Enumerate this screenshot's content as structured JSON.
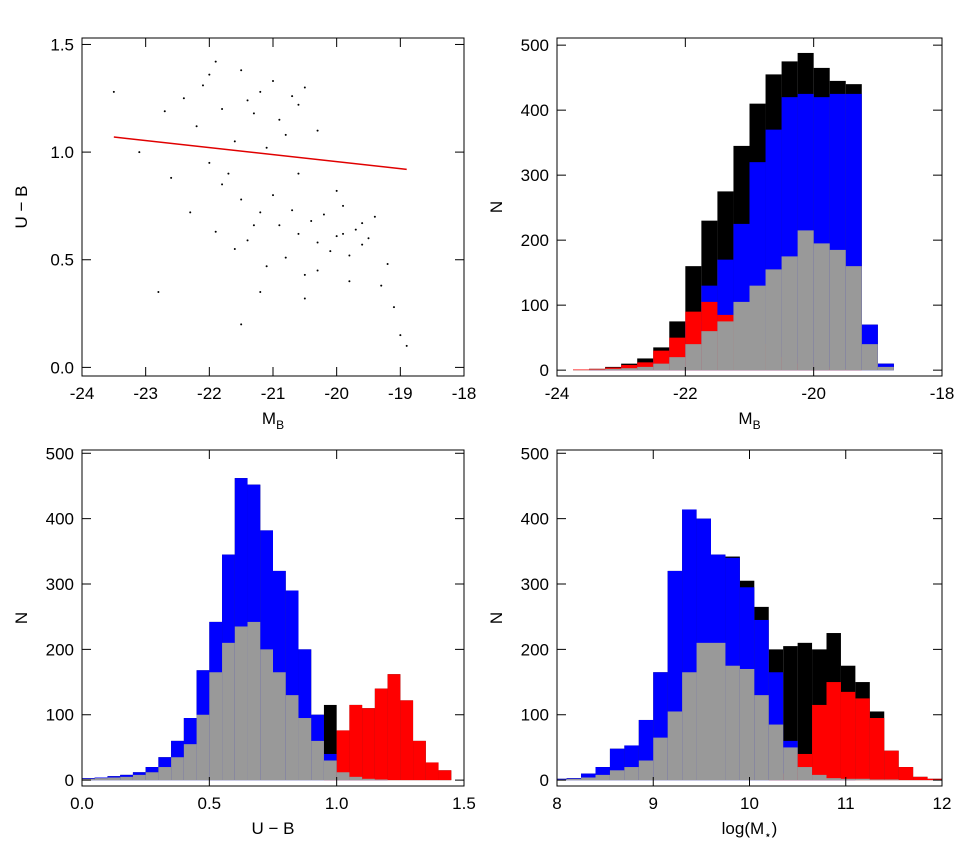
{
  "chart_data": [
    {
      "type": "scatter",
      "xlabel": [
        "M",
        "B"
      ],
      "ylabel": [
        "U − B"
      ],
      "xlim": [
        -24,
        -18
      ],
      "ylim": [
        -0.04,
        1.53
      ],
      "xticks": [
        -24,
        -23,
        -22,
        -21,
        -20,
        -19,
        -18
      ],
      "yticks": [
        {
          "value": 0,
          "label": "0.0"
        },
        0.5,
        {
          "value": 1,
          "label": "1.0"
        },
        1.5
      ],
      "series": [
        {
          "color": "#000000",
          "x": [
            -21.8,
            -21.5,
            -21.2,
            -20.9,
            -20.6,
            -20.3,
            -20.0,
            -19.7,
            -19.4,
            -21.6,
            -21.3,
            -21.0,
            -20.7,
            -20.4,
            -20.1,
            -19.8,
            -19.5,
            -19.2,
            -22.0,
            -21.7,
            -21.4,
            -21.1,
            -20.8,
            -20.5,
            -20.2,
            -19.9,
            -19.6,
            -19.3,
            -22.3,
            -22.6,
            -21.9,
            -21.2,
            -20.5,
            -19.8,
            -19.1,
            -20.0,
            -20.3,
            -19.6,
            -19.9,
            -20.6,
            -22.4,
            -22.1,
            -21.8,
            -21.5,
            -21.2,
            -20.9,
            -20.6,
            -20.3,
            -21.9,
            -21.6,
            -21.3,
            -21.0,
            -20.7,
            -22.2,
            -21.4,
            -20.8,
            -22.7,
            -22.0,
            -21.1,
            -20.5,
            -23.5,
            -23.1,
            -19.0,
            -18.9,
            -22.8,
            -21.5
          ],
          "values": [
            0.85,
            0.78,
            0.72,
            0.66,
            0.62,
            0.58,
            0.61,
            0.64,
            0.7,
            0.55,
            0.66,
            0.8,
            0.73,
            0.68,
            0.54,
            0.52,
            0.6,
            0.48,
            0.95,
            0.9,
            0.59,
            0.47,
            0.51,
            0.43,
            0.71,
            0.75,
            0.57,
            0.38,
            0.72,
            0.88,
            0.63,
            0.35,
            0.32,
            0.4,
            0.28,
            0.82,
            0.45,
            0.67,
            0.62,
            0.9,
            1.25,
            1.31,
            1.2,
            1.38,
            1.28,
            1.15,
            1.22,
            1.1,
            1.42,
            1.05,
            1.18,
            1.33,
            1.26,
            1.12,
            1.24,
            1.08,
            1.19,
            1.36,
            1.02,
            1.3,
            1.28,
            1.0,
            0.15,
            0.1,
            0.35,
            0.2
          ]
        }
      ],
      "fit_line": {
        "color": "#e00000",
        "x": [
          -23.5,
          -18.9
        ],
        "y": [
          1.07,
          0.92
        ]
      }
    },
    {
      "type": "histogram",
      "xlabel": [
        "M",
        "B"
      ],
      "ylabel": [
        "N"
      ],
      "xlim": [
        -24,
        -18
      ],
      "ylim": [
        -9,
        511
      ],
      "xticks": [
        -24,
        -22,
        -20,
        -18
      ],
      "yticks": [
        0,
        100,
        200,
        300,
        400,
        500
      ],
      "bins": [
        -23.75,
        -23.5,
        -23.25,
        -23,
        -22.75,
        -22.5,
        -22.25,
        -22,
        -21.75,
        -21.5,
        -21.25,
        -21,
        -20.75,
        -20.5,
        -20.25,
        -20,
        -19.75,
        -19.5,
        -19.25,
        -19,
        -18.75
      ],
      "series": [
        {
          "color": "#000000",
          "values": [
            1,
            2,
            5,
            10,
            18,
            35,
            75,
            160,
            230,
            275,
            345,
            410,
            455,
            475,
            488,
            465,
            445,
            440,
            70,
            10
          ]
        },
        {
          "color": "#0000ff",
          "values": [
            0,
            1,
            2,
            5,
            8,
            15,
            35,
            75,
            130,
            170,
            225,
            320,
            370,
            420,
            425,
            420,
            425,
            425,
            70,
            10
          ]
        },
        {
          "color": "#ff0000",
          "values": [
            1,
            2,
            4,
            8,
            12,
            30,
            50,
            90,
            105,
            85,
            70,
            50,
            40,
            20,
            10,
            5,
            2,
            1,
            0,
            0
          ]
        },
        {
          "color": "#999999",
          "values": [
            0,
            1,
            2,
            3,
            5,
            10,
            20,
            40,
            60,
            75,
            105,
            130,
            155,
            175,
            215,
            195,
            185,
            160,
            40,
            5
          ]
        }
      ]
    },
    {
      "type": "histogram",
      "xlabel": [
        "U − B"
      ],
      "ylabel": [
        "N"
      ],
      "xlim": [
        0,
        1.5
      ],
      "ylim": [
        -9,
        505
      ],
      "xticks": [
        {
          "value": 0,
          "label": "0.0"
        },
        0.5,
        {
          "value": 1,
          "label": "1.0"
        },
        1.5
      ],
      "yticks": [
        0,
        100,
        200,
        300,
        400,
        500
      ],
      "bins": [
        0,
        0.05,
        0.1,
        0.15,
        0.2,
        0.25,
        0.3,
        0.35,
        0.4,
        0.45,
        0.5,
        0.55,
        0.6,
        0.65,
        0.7,
        0.75,
        0.8,
        0.85,
        0.9,
        0.95,
        1.0,
        1.05,
        1.1,
        1.15,
        1.2,
        1.25,
        1.3,
        1.35,
        1.4,
        1.45,
        1.5
      ],
      "series": [
        {
          "color": "#000000",
          "values": [
            3,
            4,
            6,
            8,
            12,
            20,
            35,
            60,
            95,
            168,
            242,
            345,
            462,
            452,
            382,
            320,
            290,
            200,
            100,
            115,
            76,
            115,
            110,
            140,
            162,
            122,
            60,
            27,
            15,
            0
          ]
        },
        {
          "color": "#0000ff",
          "values": [
            3,
            4,
            6,
            8,
            12,
            20,
            35,
            60,
            95,
            168,
            242,
            345,
            462,
            452,
            382,
            320,
            290,
            200,
            100,
            40,
            10,
            5,
            2,
            1,
            0,
            0,
            0,
            0,
            0,
            0
          ]
        },
        {
          "color": "#ff0000",
          "values": [
            0,
            0,
            0,
            0,
            0,
            0,
            0,
            0,
            0,
            0,
            0,
            0,
            0,
            0,
            0,
            0,
            0,
            0,
            0,
            3,
            76,
            115,
            110,
            140,
            162,
            122,
            60,
            27,
            15,
            0
          ]
        },
        {
          "color": "#999999",
          "values": [
            2,
            3,
            4,
            5,
            8,
            12,
            20,
            35,
            55,
            100,
            165,
            210,
            235,
            242,
            200,
            165,
            130,
            95,
            60,
            30,
            12,
            5,
            2,
            1,
            0,
            0,
            0,
            0,
            0,
            0
          ]
        }
      ]
    },
    {
      "type": "histogram",
      "xlabel": [
        "log(M",
        "⋆",
        ")"
      ],
      "ylabel": [
        "N"
      ],
      "xlim": [
        8,
        12
      ],
      "ylim": [
        -9,
        505
      ],
      "xticks": [
        8,
        9,
        10,
        11,
        12
      ],
      "yticks": [
        0,
        100,
        200,
        300,
        400,
        500
      ],
      "bins": [
        7.95,
        8.1,
        8.25,
        8.4,
        8.55,
        8.7,
        8.85,
        9,
        9.15,
        9.3,
        9.45,
        9.6,
        9.75,
        9.9,
        10.05,
        10.2,
        10.35,
        10.5,
        10.65,
        10.8,
        10.95,
        11.1,
        11.25,
        11.4,
        11.55,
        11.7,
        11.85,
        12
      ],
      "series": [
        {
          "color": "#000000",
          "values": [
            2,
            3,
            10,
            20,
            48,
            53,
            92,
            165,
            320,
            414,
            400,
            345,
            342,
            305,
            265,
            200,
            205,
            210,
            200,
            225,
            175,
            150,
            105,
            45,
            20,
            5,
            2
          ]
        },
        {
          "color": "#0000ff",
          "values": [
            2,
            3,
            10,
            20,
            48,
            53,
            92,
            165,
            320,
            414,
            400,
            345,
            340,
            295,
            245,
            165,
            60,
            12,
            5,
            2,
            1,
            0,
            0,
            0,
            0,
            0,
            0
          ]
        },
        {
          "color": "#ff0000",
          "values": [
            0,
            0,
            0,
            0,
            0,
            0,
            0,
            0,
            0,
            0,
            0,
            0,
            0,
            0,
            0,
            1,
            10,
            40,
            115,
            150,
            135,
            125,
            95,
            45,
            20,
            5,
            2
          ]
        },
        {
          "color": "#999999",
          "values": [
            1,
            2,
            4,
            8,
            15,
            20,
            30,
            65,
            105,
            165,
            210,
            210,
            175,
            170,
            130,
            85,
            50,
            20,
            8,
            3,
            2,
            2,
            1,
            1,
            0,
            0,
            0
          ]
        }
      ]
    }
  ]
}
